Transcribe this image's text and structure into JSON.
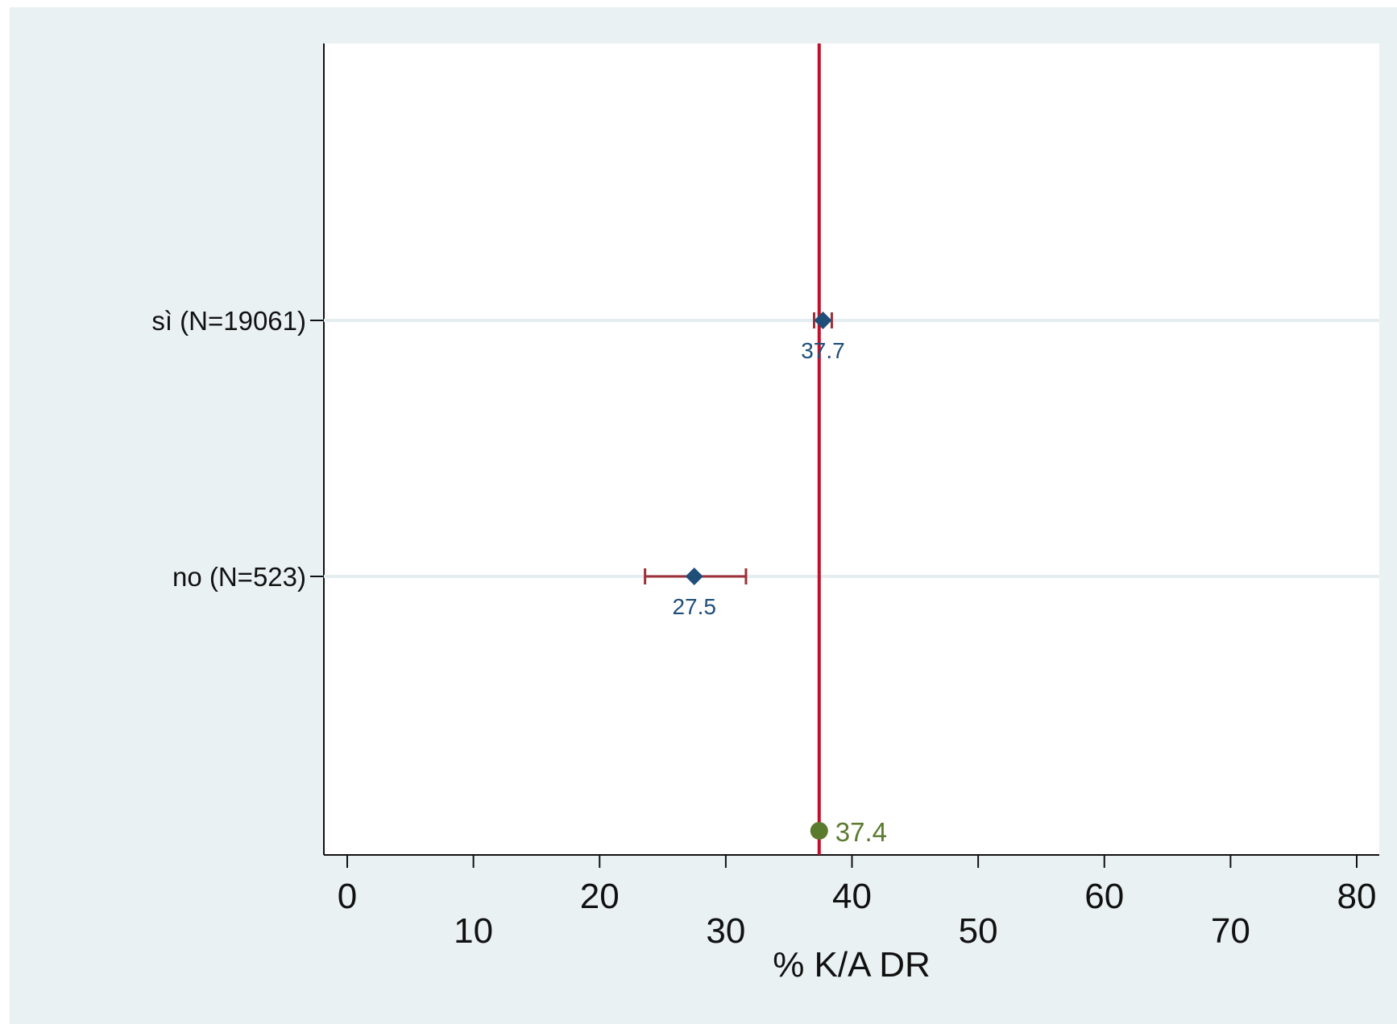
{
  "chart_data": {
    "type": "scatter",
    "xlabel": "% K/A DR",
    "ylabel": "",
    "xlim": [
      0,
      80
    ],
    "xticks_upper": [
      0,
      20,
      40,
      60,
      80
    ],
    "xticks_lower": [
      10,
      30,
      50,
      70
    ],
    "grid": "horizontal",
    "categories": [
      "sì (N=19061)",
      "no (N=523)"
    ],
    "series": [
      {
        "values": [
          37.7,
          27.5
        ],
        "ci_low": [
          37.0,
          23.6
        ],
        "ci_high": [
          38.4,
          31.6
        ],
        "labels": [
          "37.7",
          "27.5"
        ]
      }
    ],
    "reference": {
      "value": 37.4,
      "label": "37.4"
    },
    "colors": {
      "background": "#eaf1f3",
      "plot_area": "#ffffff",
      "marker": "#1f4e79",
      "error_bar": "#9e3039",
      "reference_line": "#c0102a",
      "reference_marker": "#5a7a2e",
      "gridline": "#e4edf0"
    }
  }
}
